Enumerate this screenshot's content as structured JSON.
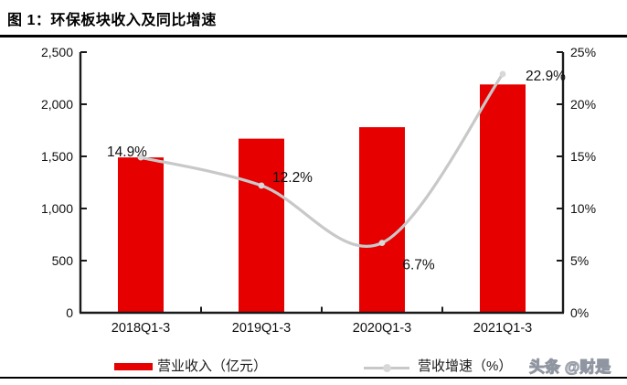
{
  "title": "图 1：环保板块收入及同比增速",
  "watermark": "头条 @财是",
  "colors": {
    "bar": "#e60000",
    "line": "#c8c8c8",
    "marker": "#d8d8d8",
    "axis": "#1a1a1a",
    "label": "#111111"
  },
  "legend": {
    "bar_label": "营业收入（亿元）",
    "line_label": "营收增速（%）"
  },
  "chart_data": {
    "type": "bar",
    "title": "环保板块收入及同比增速",
    "categories": [
      "2018Q1-3",
      "2019Q1-3",
      "2020Q1-3",
      "2021Q1-3"
    ],
    "series": [
      {
        "name": "营业收入（亿元）",
        "type": "bar",
        "axis": "left",
        "values": [
          1490,
          1670,
          1780,
          2190
        ]
      },
      {
        "name": "营收增速（%）",
        "type": "line",
        "axis": "right",
        "values": [
          14.9,
          12.2,
          6.7,
          22.9
        ],
        "point_labels": [
          "14.9%",
          "12.2%",
          "6.7%",
          "22.9%"
        ],
        "label_offsets": [
          [
            -15,
            -6
          ],
          [
            34,
            -9
          ],
          [
            40,
            24
          ],
          [
            47,
            2
          ]
        ]
      }
    ],
    "left_axis": {
      "min": 0,
      "max": 2500,
      "step": 500,
      "ticks": [
        "2,500",
        "2,000",
        "1,500",
        "1,000",
        "500",
        "0"
      ]
    },
    "right_axis": {
      "min": 0,
      "max": 25,
      "step": 5,
      "ticks": [
        "25%",
        "20%",
        "15%",
        "10%",
        "5%",
        "0%"
      ]
    },
    "grid": false,
    "legend_position": "bottom"
  }
}
